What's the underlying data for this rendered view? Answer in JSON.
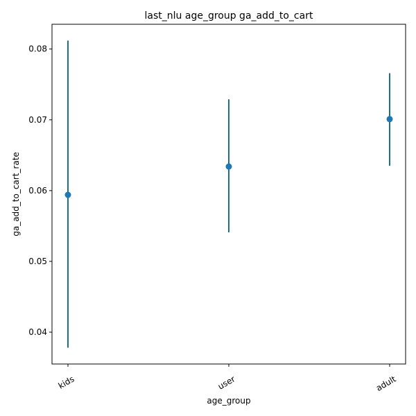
{
  "chart_data": {
    "type": "scatter",
    "title": "last_nlu age_group ga_add_to_cart",
    "xlabel": "age_group",
    "ylabel": "ga_add_to_cart_rate",
    "categories": [
      "kids",
      "user",
      "adult"
    ],
    "series": [
      {
        "values": [
          0.0594,
          0.0634,
          0.0701
        ],
        "lower": [
          0.0378,
          0.0541,
          0.0635
        ],
        "upper": [
          0.0812,
          0.0729,
          0.0766
        ]
      }
    ],
    "ylim": [
      0.0355,
      0.0835
    ],
    "yticks": [
      0.04,
      0.05,
      0.06,
      0.07,
      0.08
    ],
    "ytick_labels": [
      "0.04",
      "0.05",
      "0.06",
      "0.07",
      "0.08"
    ],
    "grid": false,
    "colors": {
      "point": "#1f77b4",
      "errorbar": "#1a6e8e"
    }
  }
}
